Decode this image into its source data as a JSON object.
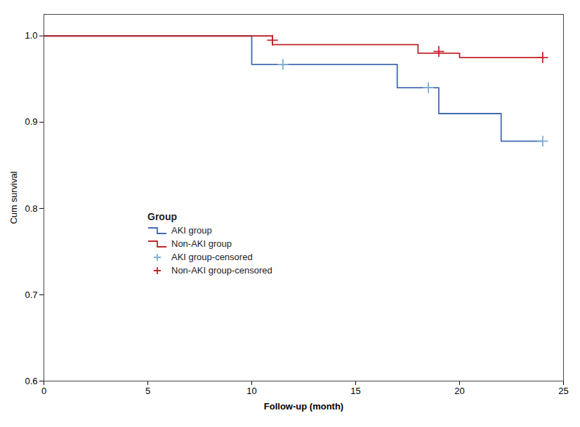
{
  "chart_data": {
    "type": "line",
    "xlabel": "Follow-up (month)",
    "ylabel": "Cum survival",
    "xlim": [
      0,
      25
    ],
    "ylim": [
      0.6,
      1.025
    ],
    "xticks": [
      0,
      5,
      10,
      15,
      20,
      25
    ],
    "yticks": [
      0.6,
      0.7,
      0.8,
      0.9,
      {
        "value": 1.0,
        "label": "1.0"
      }
    ],
    "grid": false,
    "legend": "lower left",
    "legend_title": "Group",
    "series": [
      {
        "name": "AKI group",
        "type": "line",
        "color": "#4169B0",
        "x": [
          0,
          10,
          10,
          14,
          14,
          17,
          17,
          19,
          19,
          22,
          22,
          24
        ],
        "values": [
          1.0,
          1.0,
          0.967,
          0.967,
          0.967,
          0.967,
          0.94,
          0.94,
          0.91,
          0.91,
          0.878,
          0.878
        ]
      },
      {
        "name": "Non-AKI group",
        "type": "line",
        "color": "#C0232A",
        "x": [
          0,
          11,
          11,
          18,
          18,
          20,
          20,
          24
        ],
        "values": [
          1.0,
          1.0,
          0.99,
          0.99,
          0.98,
          0.98,
          0.975,
          0.975
        ]
      },
      {
        "name": "AKI group-censored",
        "type": "scatter",
        "marker": "+",
        "color": "#7BAFD4",
        "x": [
          11.5,
          18.5,
          24.0
        ],
        "values": [
          0.967,
          0.94,
          0.878
        ]
      },
      {
        "name": "Non-AKI group-censored",
        "type": "scatter",
        "marker": "+",
        "color": "#C0232A",
        "x": [
          11.0,
          19.0,
          24.0
        ],
        "values": [
          0.995,
          0.982,
          0.975
        ]
      }
    ]
  }
}
